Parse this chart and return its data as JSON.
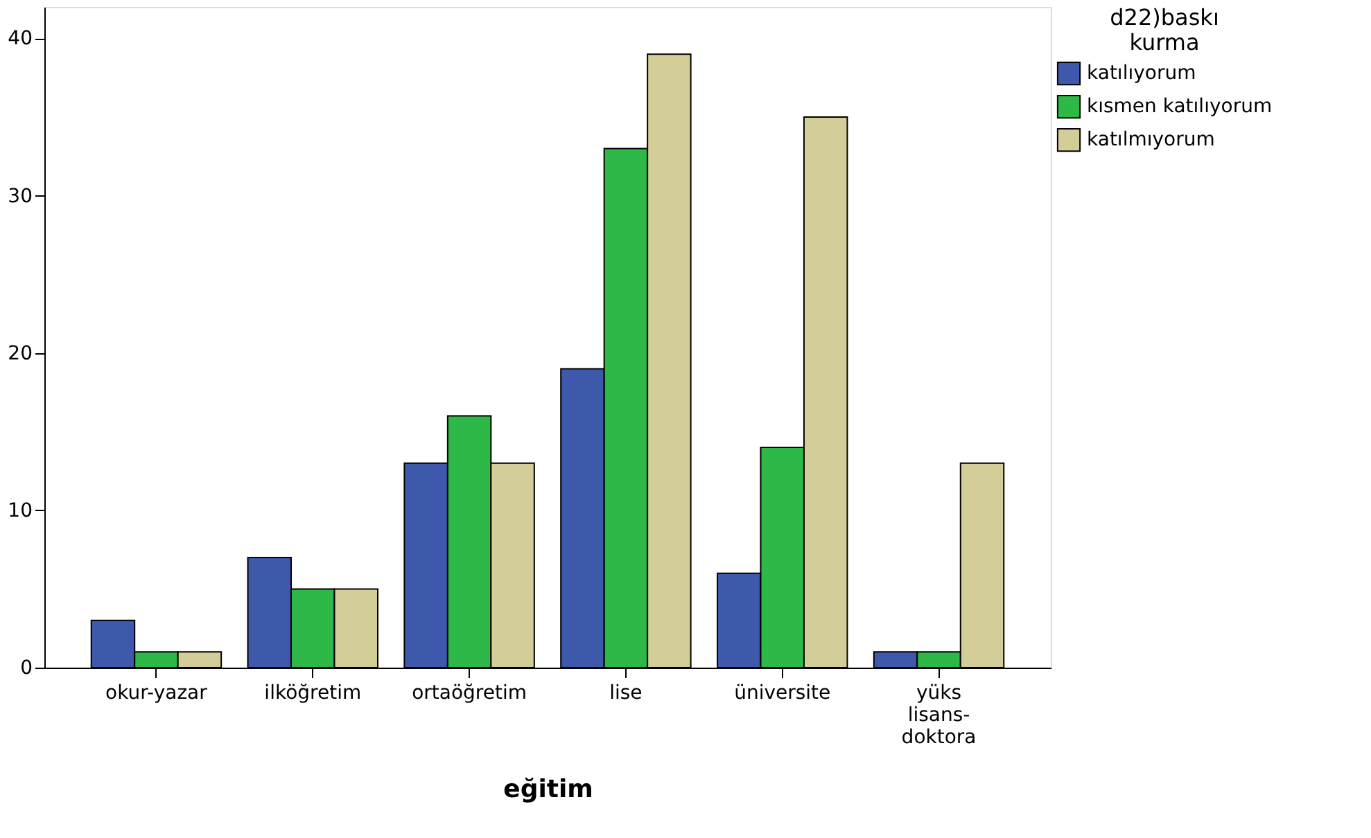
{
  "chart_data": {
    "type": "bar",
    "xlabel": "eğitim",
    "legend_title": "d22)baskı kurma",
    "categories": [
      "okur-yazar",
      "ilköğretim",
      "ortaöğretim",
      "lise",
      "üniversite",
      "yüks lisans-doktora"
    ],
    "series": [
      {
        "name": "katılıyorum",
        "color": "#3e58ac",
        "values": [
          3,
          7,
          13,
          19,
          6,
          1
        ]
      },
      {
        "name": "kısmen katılıyorum",
        "color": "#2eb848",
        "values": [
          1,
          5,
          16,
          33,
          14,
          1
        ]
      },
      {
        "name": "katılmıyorum",
        "color": "#d3ce97",
        "values": [
          1,
          5,
          13,
          39,
          35,
          13
        ]
      }
    ],
    "ylim": [
      0,
      42
    ],
    "yticks": [
      0,
      10,
      20,
      30,
      40
    ],
    "grid": false,
    "legend": "top right"
  }
}
